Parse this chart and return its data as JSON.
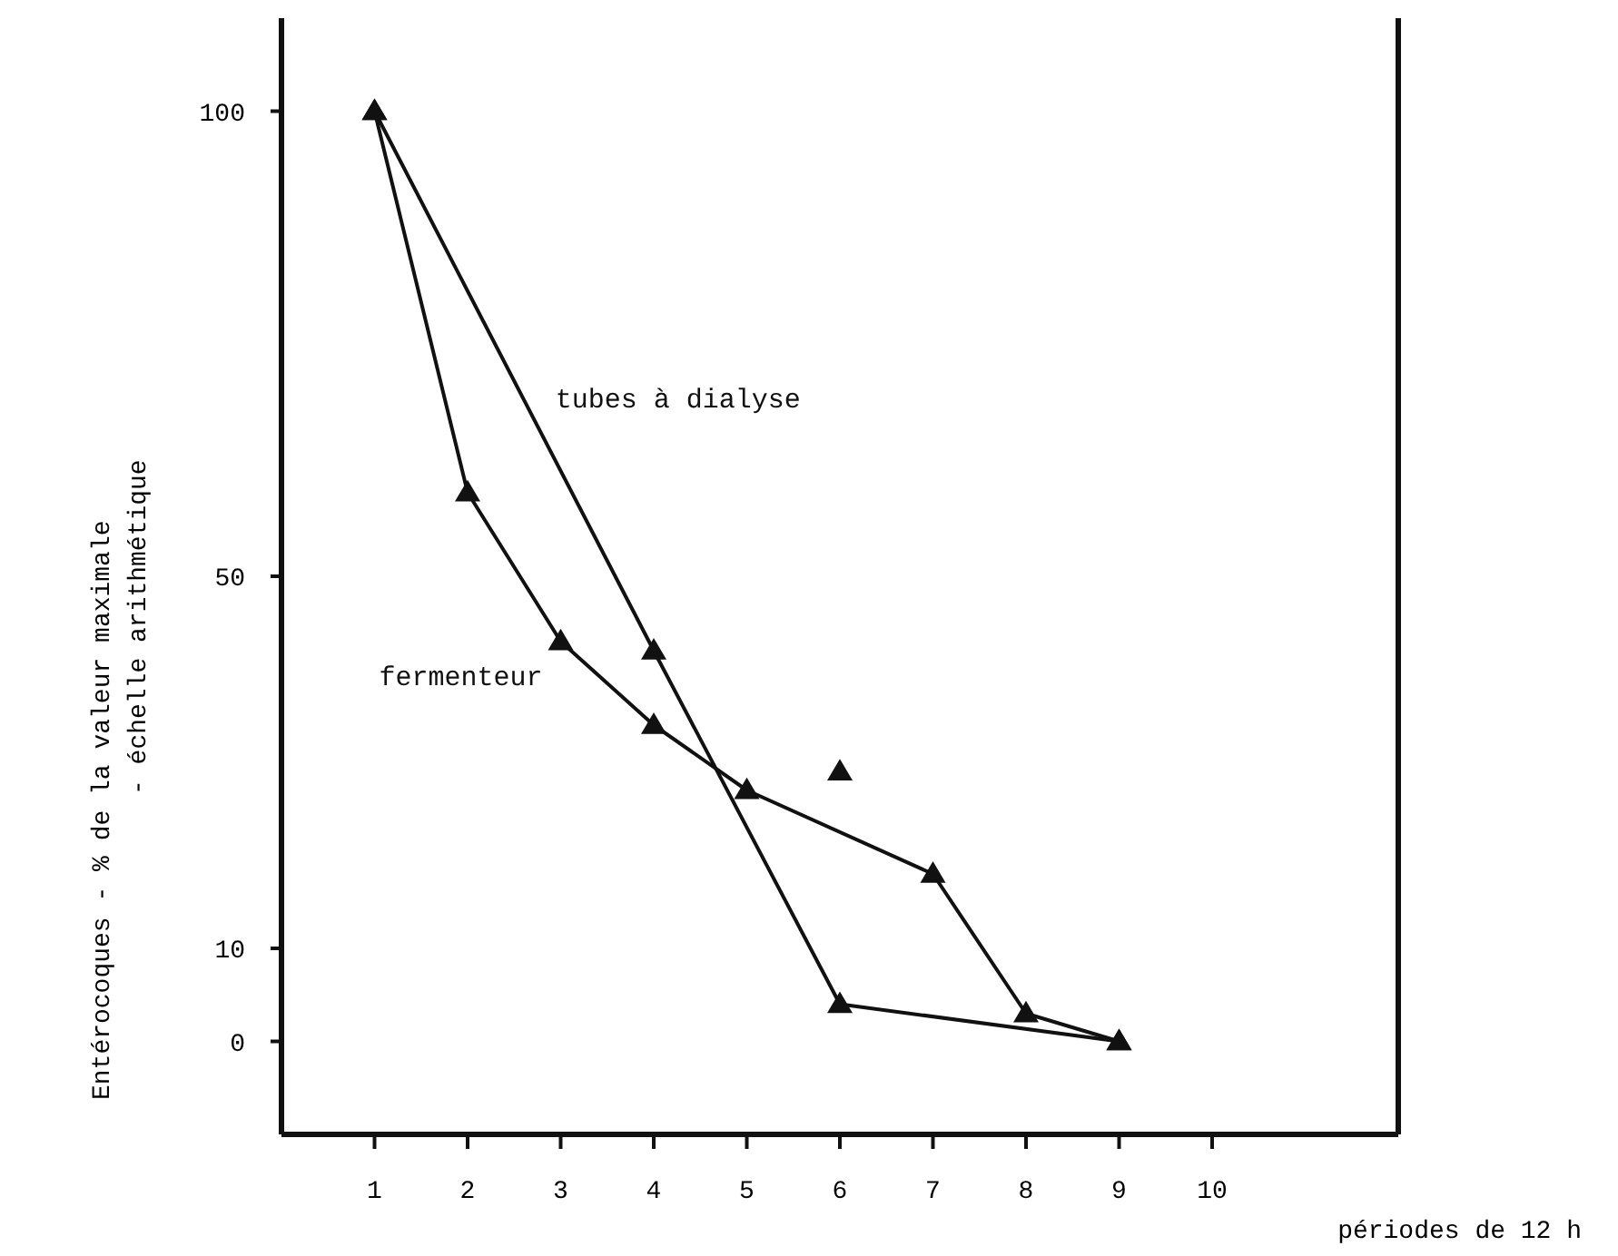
{
  "chart_data": {
    "type": "line",
    "xlabel": "périodes de 12 h",
    "ylabel": "Entérocoques  - % de la valeur maximale\n- échelle arithmétique",
    "xlim": [
      0,
      12
    ],
    "xticks": [
      1,
      2,
      3,
      4,
      5,
      6,
      7,
      8,
      9,
      10
    ],
    "ylim": [
      -10,
      110
    ],
    "yticks": [
      0,
      10,
      50,
      100
    ],
    "grid": false,
    "marker": "triangle",
    "line_style": "solid",
    "series": [
      {
        "name": "tubes à dialyse",
        "color": "#111111",
        "x": [
          1,
          4,
          6,
          9
        ],
        "values": [
          100,
          42,
          4,
          0
        ]
      },
      {
        "name": "fermenteur",
        "color": "#111111",
        "x": [
          1,
          2,
          3,
          4,
          5,
          7,
          8,
          9
        ],
        "values": [
          100,
          59,
          43,
          34,
          27,
          18,
          3,
          0
        ]
      },
      {
        "type": "scatter",
        "color": "#111111",
        "x": [
          6
        ],
        "values": [
          29
        ]
      }
    ]
  }
}
